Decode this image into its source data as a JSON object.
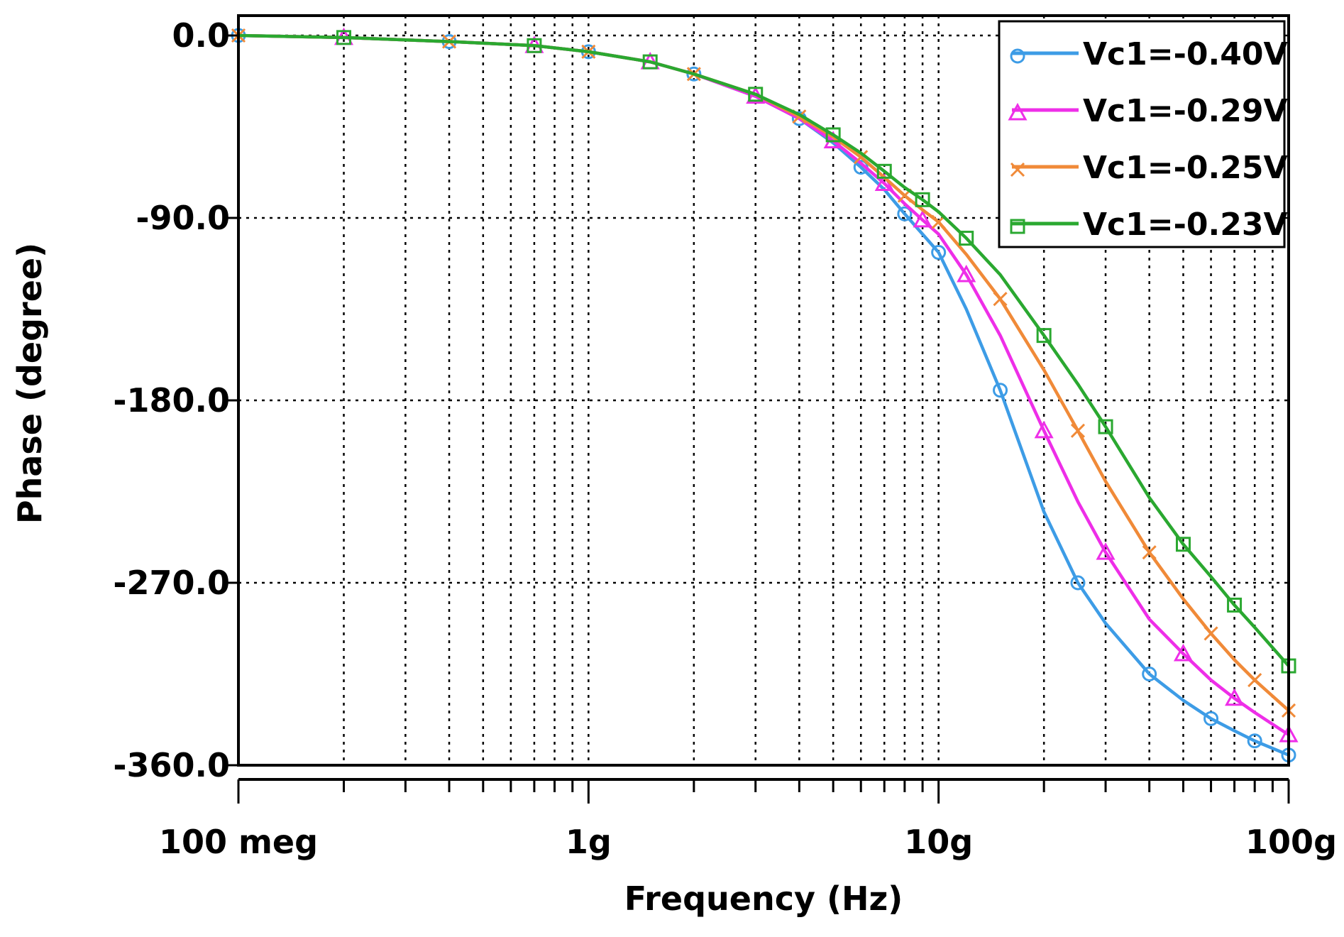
{
  "chart_data": {
    "type": "line",
    "title": "",
    "xlabel": "Frequency (Hz)",
    "ylabel": "Phase (degree)",
    "xscale": "log",
    "xlim": [
      100000000,
      100000000000
    ],
    "ylim": [
      -360,
      0
    ],
    "x_ticks": [
      {
        "value": 100000000,
        "label": "100 meg"
      },
      {
        "value": 1000000000,
        "label": "1g"
      },
      {
        "value": 10000000000,
        "label": "10g"
      },
      {
        "value": 100000000000,
        "label": "100g"
      }
    ],
    "y_ticks": [
      {
        "value": 0,
        "label": "0.0"
      },
      {
        "value": -90,
        "label": "-90.0"
      },
      {
        "value": -180,
        "label": "-180.0"
      },
      {
        "value": -270,
        "label": "-270.0"
      },
      {
        "value": -360,
        "label": "-360.0"
      }
    ],
    "grid": true,
    "legend_position": "top-right",
    "x": [
      100000000.0,
      200000000.0,
      400000000.0,
      700000000.0,
      1000000000.0,
      1500000000.0,
      2000000000.0,
      3000000000.0,
      4000000000.0,
      5000000000.0,
      6000000000.0,
      7000000000.0,
      8000000000.0,
      9000000000.0,
      10000000000.0,
      12000000000.0,
      15000000000.0,
      20000000000.0,
      25000000000.0,
      30000000000.0,
      40000000000.0,
      50000000000.0,
      60000000000.0,
      70000000000.0,
      80000000000.0,
      100000000000.0
    ],
    "series": [
      {
        "name": "Vc1=-0.40V",
        "color": "#3d9ce6",
        "marker": "circle",
        "values": [
          0,
          -1,
          -3,
          -5,
          -8,
          -13,
          -19,
          -30,
          -41,
          -53,
          -65,
          -76,
          -88,
          -98,
          -107,
          -135,
          -175,
          -235,
          -270,
          -290,
          -315,
          -328,
          -337,
          -343,
          -348,
          -355
        ]
      },
      {
        "name": "Vc1=-0.29V",
        "color": "#ee2ee8",
        "marker": "triangle",
        "values": [
          0,
          -1,
          -3,
          -5,
          -8,
          -13,
          -19,
          -30,
          -41,
          -52,
          -63,
          -73,
          -83,
          -91,
          -98,
          -118,
          -148,
          -195,
          -230,
          -255,
          -288,
          -305,
          -318,
          -327,
          -334,
          -345
        ]
      },
      {
        "name": "Vc1=-0.25V",
        "color": "#f08a38",
        "marker": "x",
        "values": [
          0,
          -1,
          -3,
          -5,
          -8,
          -13,
          -19,
          -29,
          -40,
          -50,
          -60,
          -70,
          -79,
          -86,
          -92,
          -108,
          -130,
          -165,
          -195,
          -220,
          -255,
          -278,
          -295,
          -308,
          -318,
          -333
        ]
      },
      {
        "name": "Vc1=-0.23V",
        "color": "#2aa830",
        "marker": "square",
        "values": [
          0,
          -1,
          -3,
          -5,
          -8,
          -13,
          -19,
          -29,
          -39,
          -49,
          -58,
          -67,
          -75,
          -81,
          -87,
          -100,
          -118,
          -148,
          -172,
          -193,
          -228,
          -251,
          -267,
          -281,
          -292,
          -311
        ]
      }
    ]
  }
}
